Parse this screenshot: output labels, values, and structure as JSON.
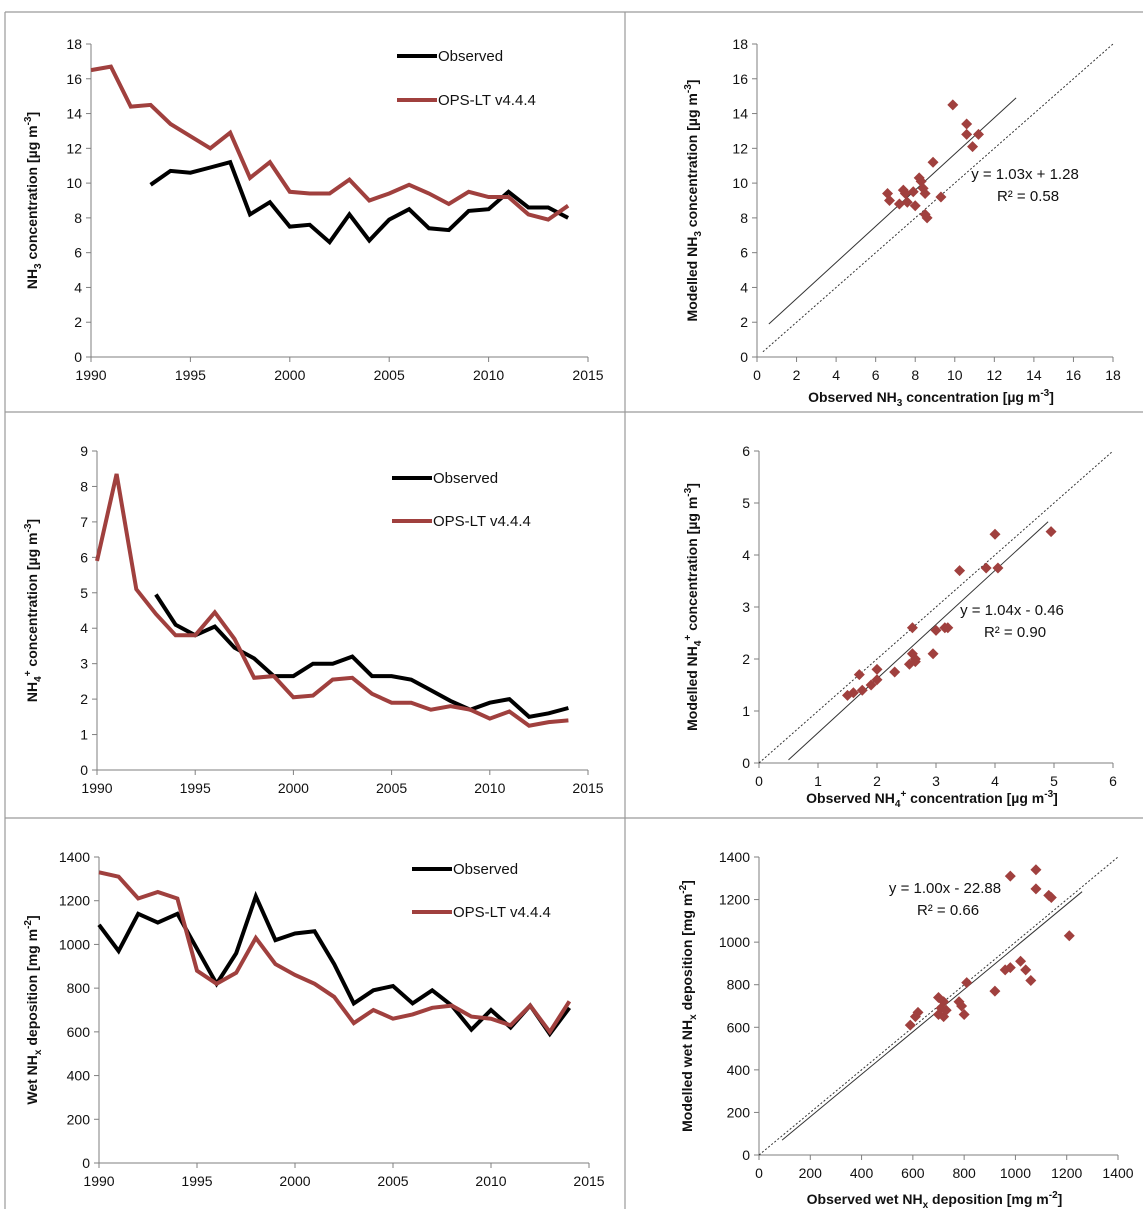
{
  "chart_data": [
    {
      "id": "ts-nh3",
      "type": "line",
      "ylabel": "NH3 concentration [µg m-3]",
      "xlim": [
        1990,
        2015
      ],
      "ylim": [
        0,
        18
      ],
      "xticks": [
        "1990",
        "1995",
        "2000",
        "2005",
        "2010",
        "2015"
      ],
      "yticks": [
        "0",
        "2",
        "4",
        "6",
        "8",
        "10",
        "12",
        "14",
        "16",
        "18"
      ],
      "series": [
        {
          "name": "Observed",
          "color": "#000000",
          "x": [
            1993,
            1994,
            1995,
            1996,
            1997,
            1998,
            1999,
            2000,
            2001,
            2002,
            2003,
            2004,
            2005,
            2006,
            2007,
            2008,
            2009,
            2010,
            2011,
            2012,
            2013,
            2014
          ],
          "y": [
            9.9,
            10.7,
            10.6,
            10.9,
            11.2,
            8.2,
            8.9,
            7.5,
            7.6,
            6.6,
            8.2,
            6.7,
            7.9,
            8.5,
            7.4,
            7.3,
            8.4,
            8.5,
            9.5,
            8.6,
            8.6,
            8.0
          ]
        },
        {
          "name": "OPS-LT v4.4.4",
          "color": "#a0403e",
          "x": [
            1990,
            1991,
            1992,
            1993,
            1994,
            1995,
            1996,
            1997,
            1998,
            1999,
            2000,
            2001,
            2002,
            2003,
            2004,
            2005,
            2006,
            2007,
            2008,
            2009,
            2010,
            2011,
            2012,
            2013,
            2014
          ],
          "y": [
            16.5,
            16.7,
            14.4,
            14.5,
            13.4,
            12.7,
            12.0,
            12.9,
            10.3,
            11.2,
            9.5,
            9.4,
            9.4,
            10.2,
            9.0,
            9.4,
            9.9,
            9.4,
            8.8,
            9.5,
            9.2,
            9.2,
            8.2,
            7.9,
            8.7
          ]
        }
      ]
    },
    {
      "id": "sc-nh3",
      "type": "scatter",
      "xlabel": "Observed NH3 concentration [µg m-3]",
      "ylabel": "Modelled NH3 concentration [µg m-3]",
      "xlim": [
        0,
        18
      ],
      "ylim": [
        0,
        18
      ],
      "xticks": [
        "0",
        "2",
        "4",
        "6",
        "8",
        "10",
        "12",
        "14",
        "16",
        "18"
      ],
      "yticks": [
        "0",
        "2",
        "4",
        "6",
        "8",
        "10",
        "12",
        "14",
        "16",
        "18"
      ],
      "points": [
        [
          6.6,
          9.4
        ],
        [
          6.7,
          9.0
        ],
        [
          7.2,
          8.8
        ],
        [
          7.4,
          9.6
        ],
        [
          7.5,
          9.4
        ],
        [
          7.6,
          8.9
        ],
        [
          7.9,
          9.5
        ],
        [
          8.0,
          8.7
        ],
        [
          8.2,
          10.3
        ],
        [
          8.3,
          10.1
        ],
        [
          8.4,
          9.7
        ],
        [
          8.5,
          9.4
        ],
        [
          8.5,
          8.2
        ],
        [
          8.6,
          8.0
        ],
        [
          8.9,
          11.2
        ],
        [
          9.3,
          9.2
        ],
        [
          9.9,
          14.5
        ],
        [
          10.6,
          13.4
        ],
        [
          10.6,
          12.8
        ],
        [
          10.9,
          12.1
        ],
        [
          11.2,
          12.8
        ]
      ],
      "regression_line": {
        "x": [
          0.6,
          13.1
        ],
        "y": [
          1.9,
          14.9
        ]
      },
      "one_to_one_line": {
        "x": [
          0.3,
          18
        ],
        "y": [
          0.3,
          18
        ]
      },
      "annotation": [
        "y = 1.03x + 1.28",
        "R² = 0.58"
      ],
      "color": "#a0403e"
    },
    {
      "id": "ts-nh4",
      "type": "line",
      "ylabel": "NH4+ concentration [µg m-3]",
      "xlim": [
        1990,
        2015
      ],
      "ylim": [
        0,
        9
      ],
      "xticks": [
        "1990",
        "1995",
        "2000",
        "2005",
        "2010",
        "2015"
      ],
      "yticks": [
        "0",
        "1",
        "2",
        "3",
        "4",
        "5",
        "6",
        "7",
        "8",
        "9"
      ],
      "series": [
        {
          "name": "Observed",
          "color": "#000000",
          "x": [
            1993,
            1994,
            1995,
            1996,
            1997,
            1998,
            1999,
            2000,
            2001,
            2002,
            2003,
            2004,
            2005,
            2006,
            2007,
            2008,
            2009,
            2010,
            2011,
            2012,
            2013,
            2014
          ],
          "y": [
            4.95,
            4.1,
            3.8,
            4.05,
            3.45,
            3.15,
            2.65,
            2.65,
            3.0,
            3.0,
            3.2,
            2.65,
            2.65,
            2.55,
            2.25,
            1.95,
            1.7,
            1.9,
            2.0,
            1.5,
            1.6,
            1.75
          ]
        },
        {
          "name": "OPS-LT v4.4.4",
          "color": "#a0403e",
          "x": [
            1990,
            1991,
            1992,
            1993,
            1994,
            1995,
            1996,
            1997,
            1998,
            1999,
            2000,
            2001,
            2002,
            2003,
            2004,
            2005,
            2006,
            2007,
            2008,
            2009,
            2010,
            2011,
            2012,
            2013,
            2014
          ],
          "y": [
            5.9,
            8.35,
            5.1,
            4.4,
            3.8,
            3.8,
            4.45,
            3.7,
            2.6,
            2.65,
            2.05,
            2.1,
            2.55,
            2.6,
            2.15,
            1.9,
            1.9,
            1.7,
            1.8,
            1.7,
            1.45,
            1.65,
            1.25,
            1.35,
            1.4
          ]
        }
      ]
    },
    {
      "id": "sc-nh4",
      "type": "scatter",
      "xlabel": "Observed NH4+ concentration [µg m-3]",
      "ylabel": "Modelled NH4+ concentration [µg m-3]",
      "xlim": [
        0,
        6
      ],
      "ylim": [
        0,
        6
      ],
      "xticks": [
        "0",
        "1",
        "2",
        "3",
        "4",
        "5",
        "6"
      ],
      "yticks": [
        "0",
        "1",
        "2",
        "3",
        "4",
        "5",
        "6"
      ],
      "points": [
        [
          1.5,
          1.3
        ],
        [
          1.6,
          1.35
        ],
        [
          1.7,
          1.7
        ],
        [
          1.75,
          1.4
        ],
        [
          1.9,
          1.5
        ],
        [
          2.0,
          1.6
        ],
        [
          2.0,
          1.8
        ],
        [
          2.3,
          1.75
        ],
        [
          2.55,
          1.9
        ],
        [
          2.6,
          2.1
        ],
        [
          2.6,
          2.6
        ],
        [
          2.65,
          2.0
        ],
        [
          2.65,
          1.95
        ],
        [
          2.95,
          2.1
        ],
        [
          3.0,
          2.55
        ],
        [
          3.15,
          2.6
        ],
        [
          3.2,
          2.6
        ],
        [
          3.4,
          3.7
        ],
        [
          3.85,
          3.75
        ],
        [
          4.0,
          4.4
        ],
        [
          4.05,
          3.75
        ],
        [
          4.95,
          4.45
        ]
      ],
      "regression_line": {
        "x": [
          0.5,
          4.9
        ],
        "y": [
          0.06,
          4.64
        ]
      },
      "one_to_one_line": {
        "x": [
          0,
          6
        ],
        "y": [
          0,
          6
        ]
      },
      "annotation": [
        "y = 1.04x - 0.46",
        "R² = 0.90"
      ],
      "color": "#a0403e"
    },
    {
      "id": "ts-wet",
      "type": "line",
      "ylabel": "Wet NHx deposition [mg m-2]",
      "xlim": [
        1990,
        2015
      ],
      "ylim": [
        0,
        1400
      ],
      "xticks": [
        "1990",
        "1995",
        "2000",
        "2005",
        "2010",
        "2015"
      ],
      "yticks": [
        "0",
        "200",
        "400",
        "600",
        "800",
        "1000",
        "1200",
        "1400"
      ],
      "series": [
        {
          "name": "Observed",
          "color": "#000000",
          "x": [
            1990,
            1991,
            1992,
            1993,
            1994,
            1995,
            1996,
            1997,
            1998,
            1999,
            2000,
            2001,
            2002,
            2003,
            2004,
            2005,
            2006,
            2007,
            2008,
            2009,
            2010,
            2011,
            2012,
            2013,
            2014
          ],
          "y": [
            1090,
            970,
            1140,
            1100,
            1140,
            980,
            820,
            960,
            1220,
            1020,
            1050,
            1060,
            910,
            730,
            790,
            810,
            730,
            790,
            720,
            610,
            700,
            620,
            720,
            590,
            710
          ]
        },
        {
          "name": "OPS-LT v4.4.4",
          "color": "#a0403e",
          "x": [
            1990,
            1991,
            1992,
            1993,
            1994,
            1995,
            1996,
            1997,
            1998,
            1999,
            2000,
            2001,
            2002,
            2003,
            2004,
            2005,
            2006,
            2007,
            2008,
            2009,
            2010,
            2011,
            2012,
            2013,
            2014
          ],
          "y": [
            1330,
            1310,
            1210,
            1240,
            1210,
            880,
            820,
            870,
            1030,
            910,
            860,
            820,
            760,
            640,
            700,
            660,
            680,
            710,
            720,
            670,
            660,
            630,
            720,
            600,
            740
          ]
        }
      ]
    },
    {
      "id": "sc-wet",
      "type": "scatter",
      "xlabel": "Observed wet NHx deposition [mg m-2]",
      "ylabel": "Modelled wet NHx deposition [mg m-2]",
      "xlim": [
        0,
        1400
      ],
      "ylim": [
        0,
        1400
      ],
      "xticks": [
        "0",
        "200",
        "400",
        "600",
        "800",
        "1000",
        "1200",
        "1400"
      ],
      "yticks": [
        "0",
        "200",
        "400",
        "600",
        "800",
        "1000",
        "1200",
        "1400"
      ],
      "points": [
        [
          590,
          610
        ],
        [
          610,
          650
        ],
        [
          620,
          670
        ],
        [
          700,
          660
        ],
        [
          700,
          740
        ],
        [
          710,
          690
        ],
        [
          720,
          650
        ],
        [
          720,
          720
        ],
        [
          730,
          680
        ],
        [
          780,
          720
        ],
        [
          790,
          700
        ],
        [
          800,
          660
        ],
        [
          810,
          810
        ],
        [
          920,
          770
        ],
        [
          960,
          870
        ],
        [
          980,
          880
        ],
        [
          980,
          1310
        ],
        [
          1020,
          910
        ],
        [
          1040,
          870
        ],
        [
          1060,
          820
        ],
        [
          1080,
          1340
        ],
        [
          1080,
          1250
        ],
        [
          1130,
          1220
        ],
        [
          1140,
          1210
        ],
        [
          1210,
          1030
        ]
      ],
      "regression_line": {
        "x": [
          90,
          1260
        ],
        "y": [
          70,
          1237
        ]
      },
      "one_to_one_line": {
        "x": [
          0,
          1400
        ],
        "y": [
          0,
          1400
        ]
      },
      "annotation": [
        "y = 1.00x - 22.88",
        "R² = 0.66"
      ],
      "color": "#a0403e"
    }
  ],
  "legend_labels": [
    "Observed",
    "OPS-LT v4.4.4"
  ]
}
